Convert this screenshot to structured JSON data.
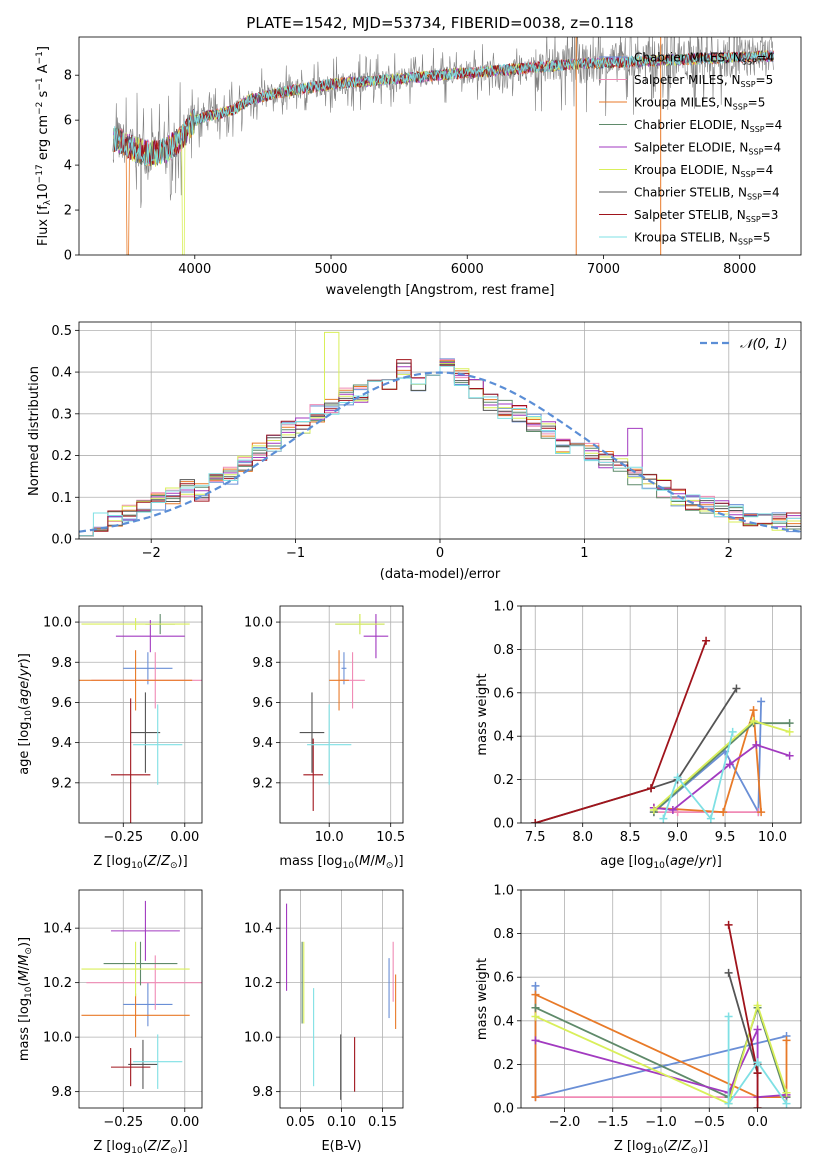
{
  "figure_title": "PLATE=1542, MJD=53734, FIBERID=0038, z=0.118",
  "colors": {
    "Chabrier MILES": "#6a8fd6",
    "Salpeter MILES": "#f08ab5",
    "Kroupa MILES": "#e87a28",
    "Chabrier ELODIE": "#5f8a6a",
    "Salpeter ELODIE": "#a23ac0",
    "Kroupa ELODIE": "#d9ef5a",
    "Chabrier STELIB": "#555555",
    "Salpeter STELIB": "#a0141c",
    "Kroupa STELIB": "#7fe0e4",
    "data": "#808080",
    "gauss": "#5b8ed6",
    "grid": "#b0b0b0"
  },
  "models": [
    {
      "name": "Chabrier MILES",
      "nssp": "4"
    },
    {
      "name": "Salpeter MILES",
      "nssp": "5"
    },
    {
      "name": "Kroupa MILES",
      "nssp": "5"
    },
    {
      "name": "Chabrier ELODIE",
      "nssp": "4"
    },
    {
      "name": "Salpeter ELODIE",
      "nssp": "4"
    },
    {
      "name": "Kroupa ELODIE",
      "nssp": "4"
    },
    {
      "name": "Chabrier STELIB",
      "nssp": "4"
    },
    {
      "name": "Salpeter STELIB",
      "nssp": "3"
    },
    {
      "name": "Kroupa STELIB",
      "nssp": "5"
    }
  ],
  "chart_data": [
    {
      "id": "spectrum",
      "type": "line",
      "title": "PLATE=1542, MJD=53734, FIBERID=0038, z=0.118",
      "xlabel": "wavelength [Angstrom, rest frame]",
      "ylabel": "Flux [f_λ 10^-17 erg cm^-2 s^-1 A^-1]",
      "xlim": [
        3150,
        8450
      ],
      "ylim": [
        0,
        9.7
      ],
      "xticks": [
        4000,
        5000,
        6000,
        7000,
        8000
      ],
      "yticks": [
        0,
        2,
        4,
        6,
        8
      ],
      "continuum": {
        "x": [
          3400,
          3500,
          3600,
          3700,
          3800,
          3900,
          4000,
          4100,
          4200,
          4300,
          4400,
          4600,
          4800,
          5000,
          5200,
          5400,
          5600,
          5800,
          6000,
          6200,
          6400,
          6600,
          6800,
          7000,
          7200,
          7400,
          7600,
          7800,
          8000,
          8200
        ],
        "y": [
          5.2,
          4.9,
          4.6,
          4.5,
          4.7,
          5.2,
          6.0,
          6.2,
          6.3,
          6.5,
          6.9,
          7.2,
          7.4,
          7.6,
          7.7,
          7.8,
          7.9,
          8.0,
          8.1,
          8.2,
          8.3,
          8.4,
          8.5,
          8.55,
          8.6,
          8.65,
          8.7,
          8.75,
          8.8,
          8.85
        ]
      },
      "legend_location": "upper right"
    },
    {
      "id": "residual_histogram",
      "type": "line",
      "xlabel": "(data-model)/error",
      "ylabel": "Normed distribution",
      "xlim": [
        -2.5,
        2.5
      ],
      "ylim": [
        0,
        0.52
      ],
      "xticks": [
        -2,
        -1,
        0,
        1,
        2
      ],
      "yticks": [
        0.0,
        0.1,
        0.2,
        0.3,
        0.4,
        0.5
      ],
      "series": [
        {
          "name": "N(0,1)",
          "label": "𝒩(0, 1)",
          "style": "dashed",
          "function": "standard normal pdf"
        }
      ],
      "histogram_base": [
        0.03,
        0.04,
        0.05,
        0.06,
        0.08,
        0.09,
        0.1,
        0.12,
        0.11,
        0.14,
        0.15,
        0.18,
        0.21,
        0.23,
        0.26,
        0.27,
        0.3,
        0.32,
        0.34,
        0.35,
        0.36,
        0.37,
        0.4,
        0.37,
        0.39,
        0.41,
        0.39,
        0.36,
        0.33,
        0.31,
        0.3,
        0.28,
        0.26,
        0.22,
        0.23,
        0.21,
        0.19,
        0.18,
        0.15,
        0.14,
        0.12,
        0.1,
        0.09,
        0.08,
        0.07,
        0.06,
        0.05,
        0.05,
        0.04,
        0.04
      ],
      "legend_location": "upper right",
      "grid": true
    },
    {
      "id": "age_vs_Z",
      "type": "scatter",
      "xlabel": "Z [log10(Z/Z⊙)]",
      "ylabel": "age [log10(age/yr)]",
      "xlim": [
        -0.43,
        0.07
      ],
      "ylim": [
        9.0,
        10.08
      ],
      "xticks": [
        -0.25,
        0.0
      ],
      "yticks": [
        9.2,
        9.4,
        9.6,
        9.8,
        10.0
      ],
      "points": [
        {
          "model": "Chabrier MILES",
          "x": -0.15,
          "xerr": 0.1,
          "y": 9.77,
          "yerr": 0.08
        },
        {
          "model": "Salpeter MILES",
          "x": -0.12,
          "xerr": 0.26,
          "y": 9.71,
          "yerr": 0.14
        },
        {
          "model": "Kroupa MILES",
          "x": -0.2,
          "xerr": 0.23,
          "y": 9.71,
          "yerr": 0.15
        },
        {
          "model": "Chabrier ELODIE",
          "x": -0.1,
          "xerr": 0.06,
          "y": 9.99,
          "yerr": 0.05
        },
        {
          "model": "Salpeter ELODIE",
          "x": -0.14,
          "xerr": 0.14,
          "y": 9.93,
          "yerr": 0.08
        },
        {
          "model": "Kroupa ELODIE",
          "x": -0.2,
          "xerr": 0.22,
          "y": 9.99,
          "yerr": 0.03
        },
        {
          "model": "Chabrier STELIB",
          "x": -0.16,
          "xerr": 0.06,
          "y": 9.45,
          "yerr": 0.2
        },
        {
          "model": "Salpeter STELIB",
          "x": -0.22,
          "xerr": 0.08,
          "y": 9.24,
          "yerr": 0.38
        },
        {
          "model": "Kroupa STELIB",
          "x": -0.11,
          "xerr": 0.1,
          "y": 9.39,
          "yerr": 0.2
        }
      ],
      "grid": true
    },
    {
      "id": "age_vs_mass",
      "type": "scatter",
      "xlabel": "mass [log10(M/M⊙)]",
      "ylabel": "",
      "xlim": [
        9.6,
        10.6
      ],
      "ylim": [
        9.0,
        10.08
      ],
      "xticks": [
        10.0,
        10.5
      ],
      "yticks": [
        9.2,
        9.4,
        9.6,
        9.8,
        10.0
      ],
      "points": [
        {
          "model": "Chabrier MILES",
          "x": 10.12,
          "xerr": 0.02,
          "y": 9.77,
          "yerr": 0.08
        },
        {
          "model": "Salpeter MILES",
          "x": 10.19,
          "xerr": 0.1,
          "y": 9.71,
          "yerr": 0.14
        },
        {
          "model": "Kroupa MILES",
          "x": 10.08,
          "xerr": 0.08,
          "y": 9.71,
          "yerr": 0.15
        },
        {
          "model": "Chabrier ELODIE",
          "x": 10.25,
          "xerr": 0.2,
          "y": 9.99,
          "yerr": 0.05
        },
        {
          "model": "Salpeter ELODIE",
          "x": 10.38,
          "xerr": 0.1,
          "y": 9.93,
          "yerr": 0.11
        },
        {
          "model": "Kroupa ELODIE",
          "x": 10.25,
          "xerr": 0.2,
          "y": 9.99,
          "yerr": 0.05
        },
        {
          "model": "Chabrier STELIB",
          "x": 9.86,
          "xerr": 0.1,
          "y": 9.45,
          "yerr": 0.2
        },
        {
          "model": "Salpeter STELIB",
          "x": 9.87,
          "xerr": 0.08,
          "y": 9.24,
          "yerr": 0.18
        },
        {
          "model": "Kroupa STELIB",
          "x": 10.0,
          "xerr": 0.18,
          "y": 9.39,
          "yerr": 0.2
        }
      ],
      "grid": true
    },
    {
      "id": "weight_vs_age",
      "type": "line",
      "xlabel": "age [log10(age/yr)]",
      "ylabel": "mass weight",
      "xlim": [
        7.35,
        10.3
      ],
      "ylim": [
        0,
        1.0
      ],
      "xticks": [
        7.5,
        8.0,
        8.5,
        9.0,
        9.5,
        10.0
      ],
      "yticks": [
        0.0,
        0.2,
        0.4,
        0.6,
        0.8,
        1.0
      ],
      "series": [
        {
          "name": "Chabrier MILES",
          "x": [
            8.75,
            9.5,
            9.85,
            9.88
          ],
          "y": [
            0.05,
            0.33,
            0.05,
            0.56
          ]
        },
        {
          "name": "Salpeter MILES",
          "x": [
            8.75,
            9.0,
            9.85
          ],
          "y": [
            0.05,
            0.05,
            0.05
          ]
        },
        {
          "name": "Kroupa MILES",
          "x": [
            8.75,
            9.48,
            9.8,
            9.88
          ],
          "y": [
            0.07,
            0.05,
            0.52,
            0.05
          ]
        },
        {
          "name": "Chabrier ELODIE",
          "x": [
            8.75,
            9.8,
            10.18
          ],
          "y": [
            0.05,
            0.46,
            0.46
          ]
        },
        {
          "name": "Salpeter ELODIE",
          "x": [
            8.75,
            8.95,
            9.55,
            9.83,
            10.18
          ],
          "y": [
            0.07,
            0.06,
            0.27,
            0.36,
            0.31
          ]
        },
        {
          "name": "Kroupa ELODIE",
          "x": [
            8.75,
            9.8,
            10.18
          ],
          "y": [
            0.06,
            0.47,
            0.42
          ]
        },
        {
          "name": "Chabrier STELIB",
          "x": [
            7.5,
            8.72,
            9.0,
            9.62
          ],
          "y": [
            0.0,
            0.16,
            0.2,
            0.62
          ]
        },
        {
          "name": "Salpeter STELIB",
          "x": [
            7.5,
            8.72,
            9.3
          ],
          "y": [
            0.0,
            0.16,
            0.84
          ]
        },
        {
          "name": "Kroupa STELIB",
          "x": [
            8.85,
            9.0,
            9.35,
            9.58
          ],
          "y": [
            0.02,
            0.21,
            0.02,
            0.42
          ]
        }
      ],
      "grid": true
    },
    {
      "id": "mass_vs_Z",
      "type": "scatter",
      "xlabel": "Z [log10(Z/Z⊙)]",
      "ylabel": "mass [log10(M/M⊙)]",
      "xlim": [
        -0.43,
        0.07
      ],
      "ylim": [
        9.74,
        10.54
      ],
      "xticks": [
        -0.25,
        0.0
      ],
      "yticks": [
        9.8,
        10.0,
        10.2,
        10.4
      ],
      "points": [
        {
          "model": "Chabrier MILES",
          "x": -0.15,
          "xerr": 0.1,
          "y": 10.12,
          "yerr": 0.08
        },
        {
          "model": "Salpeter MILES",
          "x": -0.12,
          "xerr": 0.28,
          "y": 10.2,
          "yerr": 0.1
        },
        {
          "model": "Kroupa MILES",
          "x": -0.2,
          "xerr": 0.22,
          "y": 10.08,
          "yerr": 0.08
        },
        {
          "model": "Chabrier ELODIE",
          "x": -0.18,
          "xerr": 0.15,
          "y": 10.27,
          "yerr": 0.08
        },
        {
          "model": "Salpeter ELODIE",
          "x": -0.16,
          "xerr": 0.14,
          "y": 10.39,
          "yerr": 0.11
        },
        {
          "model": "Kroupa ELODIE",
          "x": -0.2,
          "xerr": 0.22,
          "y": 10.25,
          "yerr": 0.1
        },
        {
          "model": "Chabrier STELIB",
          "x": -0.17,
          "xerr": 0.06,
          "y": 9.9,
          "yerr": 0.09
        },
        {
          "model": "Salpeter STELIB",
          "x": -0.22,
          "xerr": 0.08,
          "y": 9.89,
          "yerr": 0.07
        },
        {
          "model": "Kroupa STELIB",
          "x": -0.11,
          "xerr": 0.1,
          "y": 9.91,
          "yerr": 0.1
        }
      ],
      "grid": true
    },
    {
      "id": "mass_vs_ebv",
      "type": "scatter",
      "xlabel": "E(B-V)",
      "ylabel": "",
      "xlim": [
        0.025,
        0.175
      ],
      "ylim": [
        9.74,
        10.54
      ],
      "xticks": [
        0.05,
        0.1,
        0.15
      ],
      "yticks": [
        9.8,
        10.0,
        10.2,
        10.4
      ],
      "points": [
        {
          "model": "Chabrier MILES",
          "x": 0.158,
          "y": 10.18,
          "yerr": 0.11
        },
        {
          "model": "Salpeter MILES",
          "x": 0.163,
          "y": 10.24,
          "yerr": 0.11
        },
        {
          "model": "Kroupa MILES",
          "x": 0.166,
          "y": 10.13,
          "yerr": 0.1
        },
        {
          "model": "Chabrier ELODIE",
          "x": 0.052,
          "y": 10.2,
          "yerr": 0.15
        },
        {
          "model": "Salpeter ELODIE",
          "x": 0.033,
          "y": 10.33,
          "yerr": 0.16
        },
        {
          "model": "Kroupa ELODIE",
          "x": 0.054,
          "y": 10.2,
          "yerr": 0.15
        },
        {
          "model": "Chabrier STELIB",
          "x": 0.099,
          "y": 9.89,
          "yerr": 0.12
        },
        {
          "model": "Salpeter STELIB",
          "x": 0.116,
          "y": 9.9,
          "yerr": 0.1
        },
        {
          "model": "Kroupa STELIB",
          "x": 0.066,
          "y": 10.0,
          "yerr": 0.18
        }
      ],
      "grid": true
    },
    {
      "id": "weight_vs_Z",
      "type": "line",
      "xlabel": "Z [log10(Z/Z⊙)]",
      "ylabel": "mass weight",
      "xlim": [
        -2.45,
        0.45
      ],
      "ylim": [
        0,
        1.0
      ],
      "xticks": [
        -2.0,
        -1.5,
        -1.0,
        -0.5,
        0.0
      ],
      "yticks": [
        0.0,
        0.2,
        0.4,
        0.6,
        0.8,
        1.0
      ],
      "series": [
        {
          "name": "Chabrier MILES",
          "x": [
            -2.3,
            -2.3,
            0.3
          ],
          "y": [
            0.56,
            0.05,
            0.33
          ]
        },
        {
          "name": "Salpeter MILES",
          "x": [
            -2.3,
            -0.3,
            0.0
          ],
          "y": [
            0.05,
            0.05,
            0.05
          ]
        },
        {
          "name": "Kroupa MILES",
          "x": [
            -2.3,
            -2.3,
            0.0,
            0.3,
            0.3
          ],
          "y": [
            0.05,
            0.52,
            0.05,
            0.05,
            0.31
          ]
        },
        {
          "name": "Chabrier ELODIE",
          "x": [
            -2.3,
            -0.3,
            0.0,
            0.3
          ],
          "y": [
            0.46,
            0.05,
            0.46,
            0.05
          ]
        },
        {
          "name": "Salpeter ELODIE",
          "x": [
            -2.3,
            -0.3,
            0.0,
            0.0,
            0.3
          ],
          "y": [
            0.31,
            0.07,
            0.36,
            0.05,
            0.06
          ]
        },
        {
          "name": "Kroupa ELODIE",
          "x": [
            -2.3,
            -0.3,
            0.0,
            0.3
          ],
          "y": [
            0.42,
            0.02,
            0.47,
            0.07
          ]
        },
        {
          "name": "Chabrier STELIB",
          "x": [
            -0.3,
            0.0,
            0.0
          ],
          "y": [
            0.62,
            0.16,
            0.2
          ]
        },
        {
          "name": "Salpeter STELIB",
          "x": [
            -0.3,
            0.0,
            0.0
          ],
          "y": [
            0.84,
            0.16,
            0.0
          ]
        },
        {
          "name": "Kroupa STELIB",
          "x": [
            -0.3,
            -0.3,
            0.0,
            0.3
          ],
          "y": [
            0.42,
            0.02,
            0.21,
            0.02
          ]
        }
      ],
      "grid": true
    }
  ]
}
